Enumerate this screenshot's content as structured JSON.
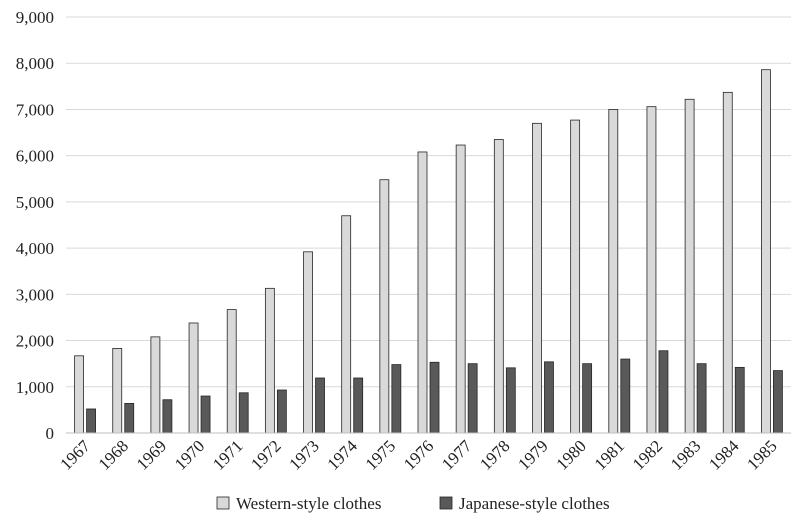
{
  "chart_data": {
    "type": "bar",
    "title": "",
    "xlabel": "",
    "ylabel": "",
    "ylim": [
      0,
      9000
    ],
    "yticks": [
      0,
      1000,
      2000,
      3000,
      4000,
      5000,
      6000,
      7000,
      8000,
      9000
    ],
    "ytick_labels": [
      "0",
      "1,000",
      "2,000",
      "3,000",
      "4,000",
      "5,000",
      "6,000",
      "7,000",
      "8,000",
      "9,000"
    ],
    "grid": true,
    "legend_position": "bottom",
    "categories": [
      "1967",
      "1968",
      "1969",
      "1970",
      "1971",
      "1972",
      "1973",
      "1974",
      "1975",
      "1976",
      "1977",
      "1978",
      "1979",
      "1980",
      "1981",
      "1982",
      "1983",
      "1984",
      "1985"
    ],
    "series": [
      {
        "name": "Western-style clothes",
        "color": "#d9d9d9",
        "values": [
          1670,
          1830,
          2080,
          2380,
          2670,
          3130,
          3920,
          4700,
          5480,
          6080,
          6230,
          6350,
          6700,
          6770,
          7000,
          7060,
          7220,
          7370,
          7860
        ]
      },
      {
        "name": "Japanese-style clothes",
        "color": "#595959",
        "values": [
          520,
          640,
          720,
          800,
          870,
          930,
          1190,
          1190,
          1480,
          1530,
          1500,
          1410,
          1540,
          1500,
          1600,
          1780,
          1500,
          1420,
          1350
        ]
      }
    ]
  }
}
